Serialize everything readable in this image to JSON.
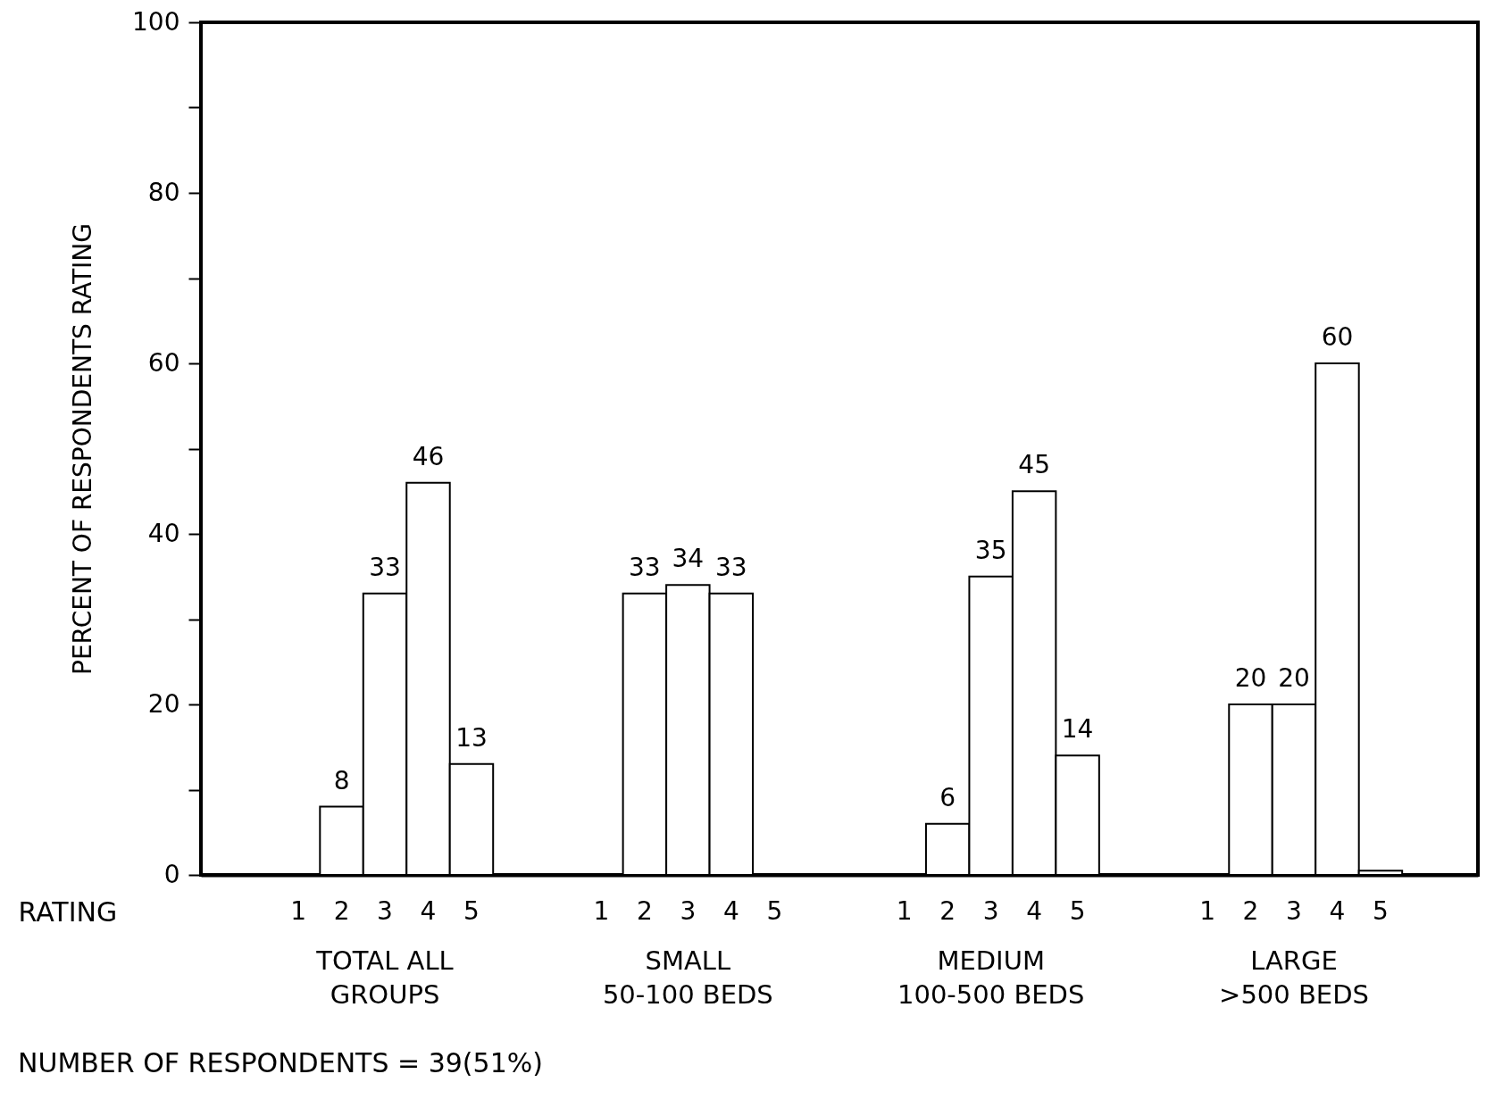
{
  "chart_data": {
    "type": "bar",
    "xlabel": "RATING",
    "ylabel": "PERCENT OF RESPONDENTS RATING",
    "categories": [
      "TOTAL ALL\nGROUPS",
      "SMALL\n50-100 BEDS",
      "MEDIUM\n100-500 BEDS",
      "LARGE\n>500 BEDS"
    ],
    "series": [
      {
        "name": "1",
        "values": [
          null,
          null,
          null,
          null
        ],
        "value_labels": [
          null,
          null,
          null,
          null
        ]
      },
      {
        "name": "2",
        "color": "#ffffff",
        "values": [
          8,
          33,
          6,
          20
        ],
        "value_labels": [
          "8",
          "33",
          "6",
          "20"
        ]
      },
      {
        "name": "3",
        "color": "#ffffff",
        "values": [
          33,
          34,
          35,
          20
        ],
        "value_labels": [
          "33",
          "34",
          "35",
          "20"
        ]
      },
      {
        "name": "4",
        "color": "#ffffff",
        "values": [
          46,
          33,
          45,
          60
        ],
        "value_labels": [
          "46",
          "33",
          "45",
          "60"
        ]
      },
      {
        "name": "5",
        "color": "#ffffff",
        "values": [
          13,
          null,
          14,
          0.5
        ],
        "value_labels": [
          "13",
          null,
          "14",
          null
        ]
      }
    ],
    "ylim": [
      0,
      100
    ],
    "yticks": [
      0,
      {
        "value": 10,
        "label": null
      },
      20,
      {
        "value": 30,
        "label": null
      },
      40,
      {
        "value": 50,
        "label": null
      },
      60,
      {
        "value": 70,
        "label": null
      },
      80,
      {
        "value": 90,
        "label": null
      },
      100
    ],
    "grid": false,
    "legend": false,
    "annotations": [
      "NUMBER OF RESPONDENTS =  39(51%)"
    ]
  }
}
